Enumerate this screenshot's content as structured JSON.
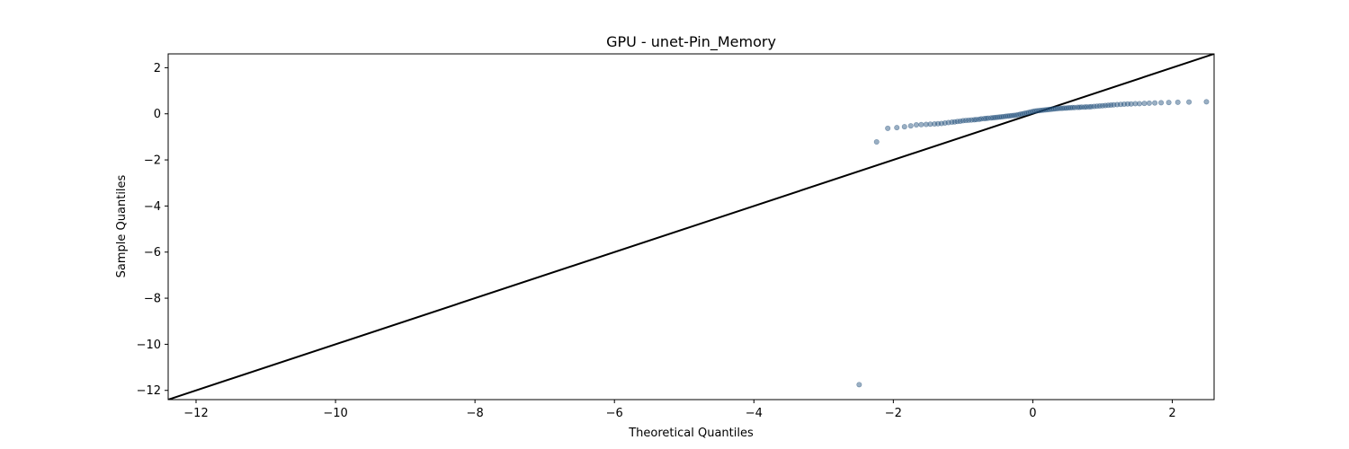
{
  "chart_data": {
    "type": "scatter",
    "title": "GPU - unet-Pin_Memory",
    "xlabel": "Theoretical Quantiles",
    "ylabel": "Sample Quantiles",
    "xlim": [
      -12.4,
      2.6
    ],
    "ylim": [
      -12.4,
      2.6
    ],
    "xticks": [
      -12,
      -10,
      -8,
      -6,
      -4,
      -2,
      0,
      2
    ],
    "yticks": [
      -12,
      -10,
      -8,
      -6,
      -4,
      -2,
      0,
      2
    ],
    "grid": false,
    "reference_line": {
      "x": [
        -12.4,
        2.6
      ],
      "y": [
        -12.4,
        2.6
      ],
      "color": "#000000"
    },
    "point_color": "#1f4e79",
    "points": [
      {
        "x": -2.49,
        "y": -11.75
      },
      {
        "x": -2.24,
        "y": -1.22
      },
      {
        "x": -2.08,
        "y": -0.63
      },
      {
        "x": -1.95,
        "y": -0.6
      },
      {
        "x": -1.84,
        "y": -0.56
      },
      {
        "x": -1.75,
        "y": -0.52
      },
      {
        "x": -1.67,
        "y": -0.48
      },
      {
        "x": -1.6,
        "y": -0.47
      },
      {
        "x": -1.53,
        "y": -0.46
      },
      {
        "x": -1.47,
        "y": -0.45
      },
      {
        "x": -1.41,
        "y": -0.44
      },
      {
        "x": -1.36,
        "y": -0.43
      },
      {
        "x": -1.31,
        "y": -0.42
      },
      {
        "x": -1.26,
        "y": -0.4
      },
      {
        "x": -1.21,
        "y": -0.38
      },
      {
        "x": -1.16,
        "y": -0.36
      },
      {
        "x": -1.12,
        "y": -0.35
      },
      {
        "x": -1.08,
        "y": -0.33
      },
      {
        "x": -1.04,
        "y": -0.32
      },
      {
        "x": -1.0,
        "y": -0.3
      },
      {
        "x": -0.96,
        "y": -0.29
      },
      {
        "x": -0.92,
        "y": -0.28
      },
      {
        "x": -0.88,
        "y": -0.27
      },
      {
        "x": -0.84,
        "y": -0.26
      },
      {
        "x": -0.81,
        "y": -0.25
      },
      {
        "x": -0.77,
        "y": -0.24
      },
      {
        "x": -0.74,
        "y": -0.22
      },
      {
        "x": -0.7,
        "y": -0.21
      },
      {
        "x": -0.67,
        "y": -0.2
      },
      {
        "x": -0.64,
        "y": -0.19
      },
      {
        "x": -0.6,
        "y": -0.18
      },
      {
        "x": -0.57,
        "y": -0.17
      },
      {
        "x": -0.54,
        "y": -0.16
      },
      {
        "x": -0.51,
        "y": -0.15
      },
      {
        "x": -0.48,
        "y": -0.14
      },
      {
        "x": -0.45,
        "y": -0.13
      },
      {
        "x": -0.42,
        "y": -0.12
      },
      {
        "x": -0.39,
        "y": -0.11
      },
      {
        "x": -0.36,
        "y": -0.1
      },
      {
        "x": -0.33,
        "y": -0.09
      },
      {
        "x": -0.3,
        "y": -0.08
      },
      {
        "x": -0.27,
        "y": -0.07
      },
      {
        "x": -0.24,
        "y": -0.06
      },
      {
        "x": -0.21,
        "y": -0.04
      },
      {
        "x": -0.18,
        "y": -0.02
      },
      {
        "x": -0.15,
        "y": 0.0
      },
      {
        "x": -0.12,
        "y": 0.02
      },
      {
        "x": -0.09,
        "y": 0.04
      },
      {
        "x": -0.06,
        "y": 0.06
      },
      {
        "x": -0.03,
        "y": 0.08
      },
      {
        "x": 0.0,
        "y": 0.1
      },
      {
        "x": 0.03,
        "y": 0.12
      },
      {
        "x": 0.06,
        "y": 0.13
      },
      {
        "x": 0.09,
        "y": 0.14
      },
      {
        "x": 0.12,
        "y": 0.15
      },
      {
        "x": 0.15,
        "y": 0.16
      },
      {
        "x": 0.18,
        "y": 0.17
      },
      {
        "x": 0.21,
        "y": 0.18
      },
      {
        "x": 0.24,
        "y": 0.19
      },
      {
        "x": 0.27,
        "y": 0.2
      },
      {
        "x": 0.3,
        "y": 0.21
      },
      {
        "x": 0.33,
        "y": 0.22
      },
      {
        "x": 0.36,
        "y": 0.23
      },
      {
        "x": 0.39,
        "y": 0.24
      },
      {
        "x": 0.42,
        "y": 0.24
      },
      {
        "x": 0.45,
        "y": 0.25
      },
      {
        "x": 0.48,
        "y": 0.25
      },
      {
        "x": 0.51,
        "y": 0.26
      },
      {
        "x": 0.54,
        "y": 0.26
      },
      {
        "x": 0.57,
        "y": 0.27
      },
      {
        "x": 0.6,
        "y": 0.27
      },
      {
        "x": 0.64,
        "y": 0.28
      },
      {
        "x": 0.67,
        "y": 0.28
      },
      {
        "x": 0.7,
        "y": 0.29
      },
      {
        "x": 0.74,
        "y": 0.29
      },
      {
        "x": 0.77,
        "y": 0.3
      },
      {
        "x": 0.81,
        "y": 0.3
      },
      {
        "x": 0.84,
        "y": 0.31
      },
      {
        "x": 0.88,
        "y": 0.32
      },
      {
        "x": 0.92,
        "y": 0.33
      },
      {
        "x": 0.96,
        "y": 0.34
      },
      {
        "x": 1.0,
        "y": 0.35
      },
      {
        "x": 1.04,
        "y": 0.36
      },
      {
        "x": 1.08,
        "y": 0.37
      },
      {
        "x": 1.12,
        "y": 0.38
      },
      {
        "x": 1.16,
        "y": 0.39
      },
      {
        "x": 1.21,
        "y": 0.4
      },
      {
        "x": 1.26,
        "y": 0.41
      },
      {
        "x": 1.31,
        "y": 0.42
      },
      {
        "x": 1.36,
        "y": 0.43
      },
      {
        "x": 1.41,
        "y": 0.43
      },
      {
        "x": 1.47,
        "y": 0.44
      },
      {
        "x": 1.53,
        "y": 0.44
      },
      {
        "x": 1.6,
        "y": 0.45
      },
      {
        "x": 1.67,
        "y": 0.46
      },
      {
        "x": 1.75,
        "y": 0.47
      },
      {
        "x": 1.84,
        "y": 0.48
      },
      {
        "x": 1.95,
        "y": 0.49
      },
      {
        "x": 2.08,
        "y": 0.5
      },
      {
        "x": 2.24,
        "y": 0.51
      },
      {
        "x": 2.49,
        "y": 0.52
      }
    ]
  }
}
